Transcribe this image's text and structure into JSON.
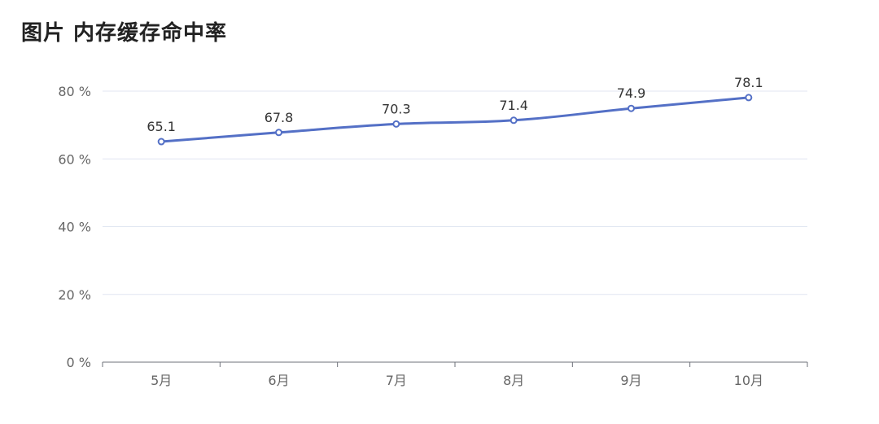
{
  "title": "图片 内存缓存命中率",
  "chart_data": {
    "type": "line",
    "title": "图片 内存缓存命中率",
    "categories": [
      "5月",
      "6月",
      "7月",
      "8月",
      "9月",
      "10月"
    ],
    "series": [
      {
        "values": [
          65.1,
          67.8,
          70.3,
          71.4,
          74.9,
          78.1
        ],
        "labels": [
          "65.1",
          "67.8",
          "70.3",
          "71.4",
          "74.9",
          "78.1"
        ]
      }
    ],
    "y_ticks": [
      0,
      20,
      40,
      60,
      80
    ],
    "y_tick_labels": [
      "0 %",
      "20 %",
      "40 %",
      "60 %",
      "80 %"
    ],
    "ylim": [
      0,
      80
    ],
    "grid": true,
    "smooth": true,
    "line_color": "#5470c6",
    "grid_color": "#e0e6f1",
    "axis_color": "#6e7079"
  }
}
